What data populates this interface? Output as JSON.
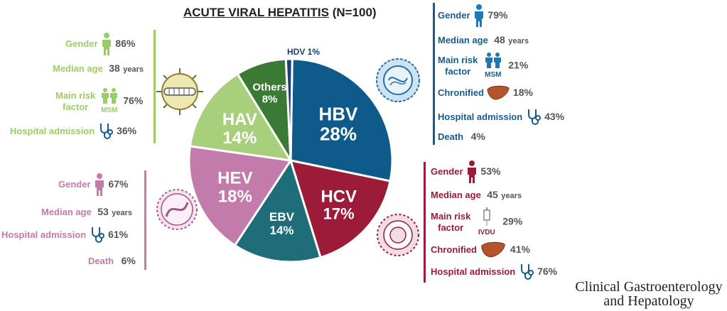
{
  "title": {
    "main": "ACUTE VIRAL HEPATITIS",
    "n": "(N=100)"
  },
  "chart_data": {
    "type": "pie",
    "title": "ACUTE VIRAL HEPATITIS (N=100)",
    "labels": [
      "HBV",
      "HCV",
      "EBV",
      "HEV",
      "HAV",
      "Others",
      "HDV"
    ],
    "values": [
      28,
      17,
      14,
      18,
      14,
      8,
      1
    ],
    "pct_labels": [
      "28%",
      "17%",
      "14%",
      "18%",
      "14%",
      "8%",
      "1%"
    ],
    "colors": [
      "#0e5a8a",
      "#9b1b38",
      "#1e6d78",
      "#c27bab",
      "#a8cf7c",
      "#3a7a35",
      "#1d3f73"
    ]
  },
  "hdv_label": "HDV 1%",
  "hbv": {
    "color": "#1a5b8e",
    "gender_label": "Gender",
    "gender_value": "79%",
    "age_label": "Median age",
    "age_value": "48",
    "age_unit": "years",
    "risk_label_1": "Main risk",
    "risk_label_2": "factor",
    "risk_value": "21%",
    "risk_tag": "MSM",
    "chron_label": "Chronified",
    "chron_value": "18%",
    "hosp_label": "Hospital admission",
    "hosp_value": "43%",
    "death_label": "Death",
    "death_value": "4%"
  },
  "hav": {
    "color": "#9ccc65",
    "gender_label": "Gender",
    "gender_value": "86%",
    "age_label": "Median age",
    "age_value": "38",
    "age_unit": "years",
    "risk_label_1": "Main risk",
    "risk_label_2": "factor",
    "risk_value": "76%",
    "risk_tag": "MSM",
    "hosp_label": "Hospital admission",
    "hosp_value": "36%"
  },
  "hev": {
    "color": "#c27bab",
    "gender_label": "Gender",
    "gender_value": "67%",
    "age_label": "Median age",
    "age_value": "53",
    "age_unit": "years",
    "hosp_label": "Hospital admission",
    "hosp_value": "61%",
    "death_label": "Death",
    "death_value": "6%"
  },
  "hcv": {
    "color": "#9b1b38",
    "gender_label": "Gender",
    "gender_value": "53%",
    "age_label": "Median age",
    "age_value": "45",
    "age_unit": "years",
    "risk_label_1": "Main risk",
    "risk_label_2": "factor",
    "risk_value": "29%",
    "risk_tag": "IVDU",
    "chron_label": "Chronified",
    "chron_value": "41%",
    "hosp_label": "Hospital admission",
    "hosp_value": "76%"
  },
  "journal": {
    "line1": "Clinical Gastroenterology",
    "line2": "and Hepatology"
  }
}
